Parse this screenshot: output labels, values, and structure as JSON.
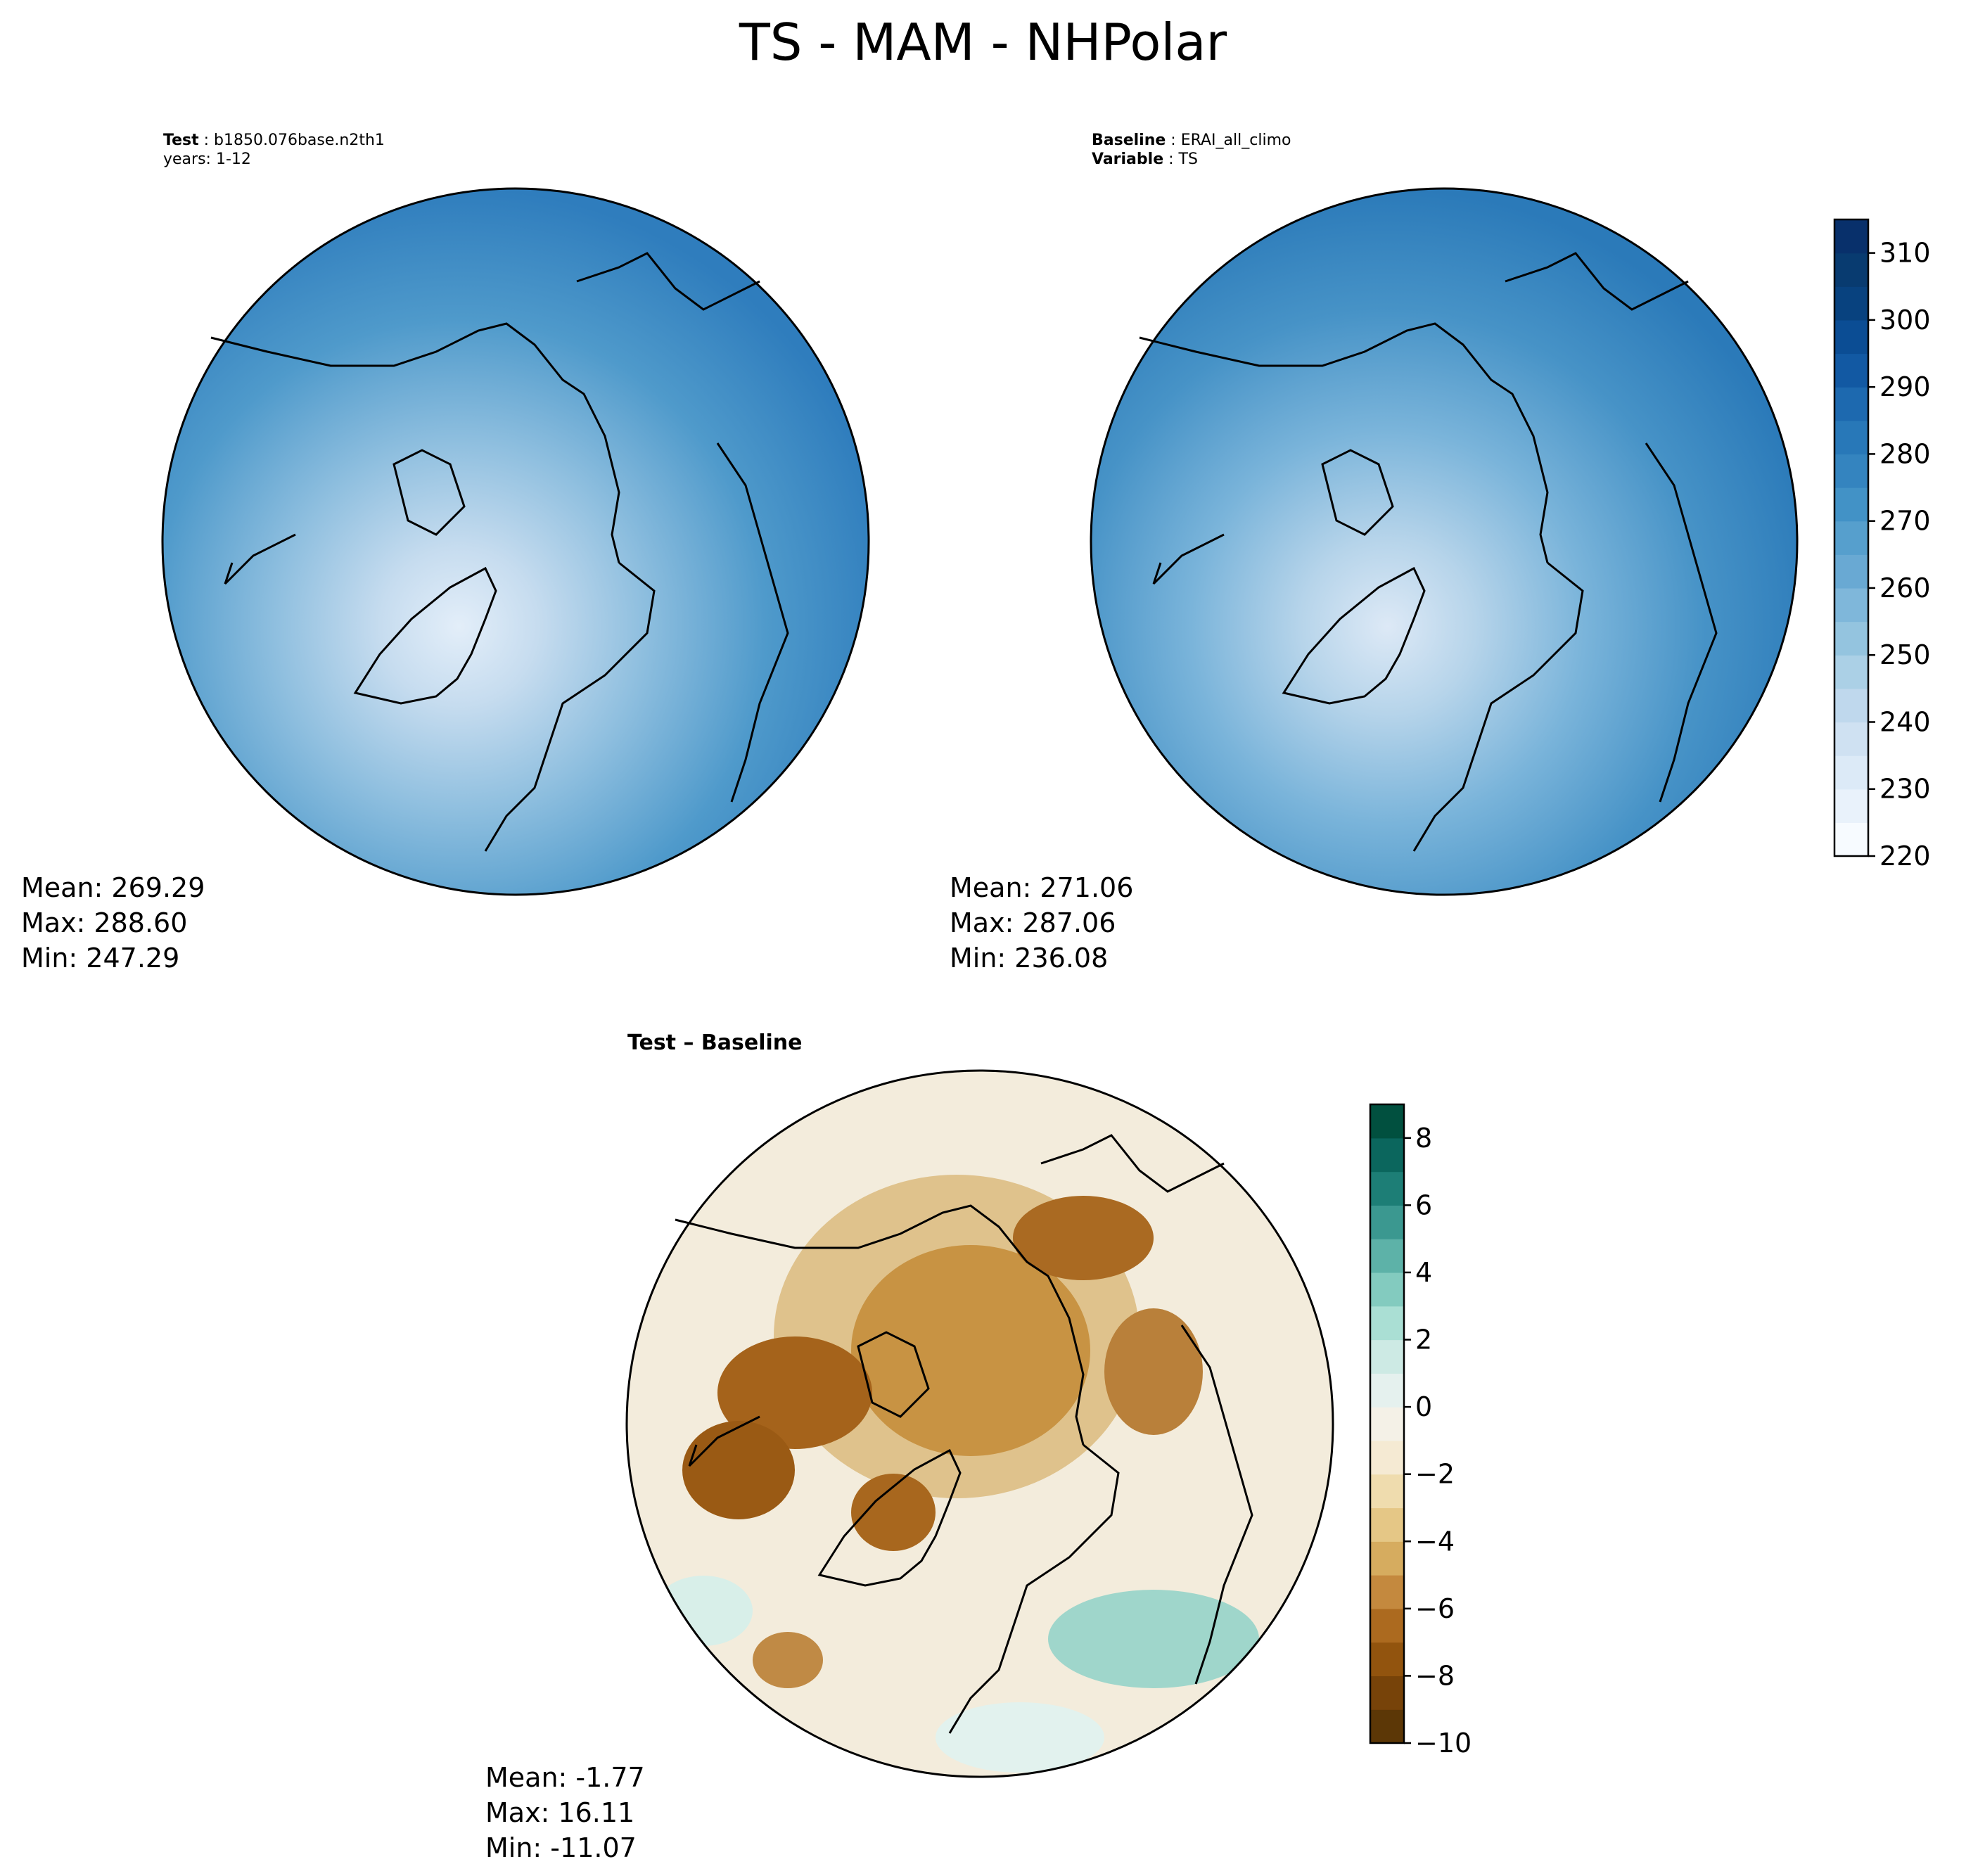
{
  "figure": {
    "title": "TS - MAM - NHPolar"
  },
  "panels": {
    "test": {
      "label_key": "Test",
      "label_value": "b1850.076base.n2th1",
      "years": "years: 1-12",
      "stats": {
        "mean": "Mean: 269.29",
        "max": "Max: 288.60",
        "min": "Min: 247.29"
      }
    },
    "baseline": {
      "label_key": "Baseline",
      "label_value": "ERAI_all_climo",
      "variable_key": "Variable",
      "variable_value": "TS",
      "stats": {
        "mean": "Mean: 271.06",
        "max": "Max: 287.06",
        "min": "Min: 236.08"
      }
    },
    "diff": {
      "title": "Test – Baseline",
      "stats": {
        "mean": "Mean: -1.77",
        "max": "Max: 16.11",
        "min": "Min: -11.07"
      }
    }
  },
  "chart_data": [
    {
      "type": "heatmap",
      "name": "test",
      "projection": "north-polar-stereographic",
      "colormap": "Blues",
      "mean": 269.29,
      "max": 288.6,
      "min": 247.29
    },
    {
      "type": "heatmap",
      "name": "baseline",
      "projection": "north-polar-stereographic",
      "colormap": "Blues",
      "mean": 271.06,
      "max": 287.06,
      "min": 236.08
    },
    {
      "type": "heatmap",
      "name": "difference",
      "projection": "north-polar-stereographic",
      "colormap": "BrBG",
      "mean": -1.77,
      "max": 16.11,
      "min": -11.07
    }
  ],
  "colorbars": {
    "main": {
      "range": [
        220,
        315
      ],
      "levels": [
        220,
        225,
        230,
        235,
        240,
        245,
        250,
        255,
        260,
        265,
        270,
        275,
        280,
        285,
        290,
        295,
        300,
        305,
        310,
        315
      ],
      "ticks": [
        220,
        230,
        240,
        250,
        260,
        270,
        280,
        290,
        300,
        310
      ],
      "colors": [
        "#f7fbff",
        "#e9f2fb",
        "#dceaf7",
        "#cfe1f2",
        "#bfd8ed",
        "#abd0e6",
        "#94c4df",
        "#7fb7da",
        "#69a9d3",
        "#569fcd",
        "#4292c6",
        "#3484bf",
        "#2878b8",
        "#1d69af",
        "#1259a3",
        "#0b4d94",
        "#08427f",
        "#083b70",
        "#08306b"
      ]
    },
    "diff": {
      "range": [
        -10,
        9
      ],
      "levels": [
        -10,
        -9,
        -8,
        -7,
        -6,
        -5,
        -4,
        -3,
        -2,
        -1,
        0,
        1,
        2,
        3,
        4,
        5,
        6,
        7,
        8,
        9
      ],
      "ticks": [
        -10,
        -8,
        -6,
        -4,
        -2,
        0,
        2,
        4,
        6,
        8
      ],
      "tick_labels": [
        "−10",
        "−8",
        "−6",
        "−4",
        "−2",
        "0",
        "2",
        "4",
        "6",
        "8"
      ],
      "colors": [
        "#5c3706",
        "#774309",
        "#92540e",
        "#ac6a1f",
        "#c4893e",
        "#d6ac5f",
        "#e5c786",
        "#efdcae",
        "#f5ead3",
        "#f4f1e7",
        "#e5f1ee",
        "#cdeae4",
        "#aadfd4",
        "#83cbbf",
        "#5db2a8",
        "#3b9890",
        "#1d7e76",
        "#0b665d",
        "#01503f"
      ]
    }
  }
}
